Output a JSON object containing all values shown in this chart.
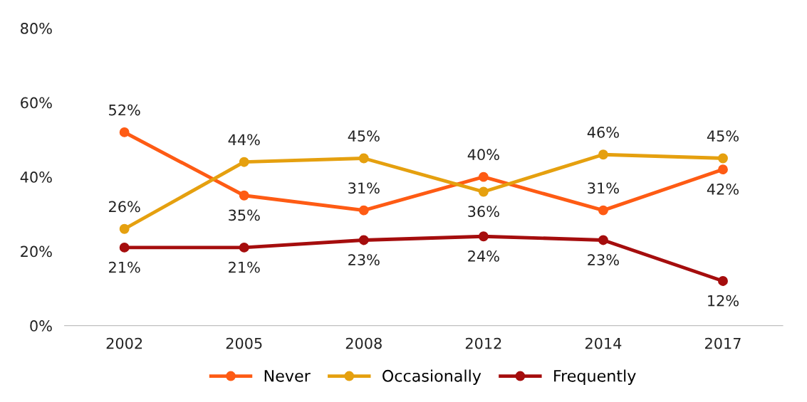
{
  "chart_data": {
    "type": "line",
    "categories": [
      "2002",
      "2005",
      "2008",
      "2012",
      "2014",
      "2017"
    ],
    "series": [
      {
        "name": "Never",
        "color": "#fe5b14",
        "values": [
          52,
          35,
          31,
          40,
          31,
          42
        ],
        "value_labels": [
          "52%",
          "35%",
          "31%",
          "40%",
          "31%",
          "42%"
        ]
      },
      {
        "name": "Occasionally",
        "color": "#e5a00f",
        "values": [
          26,
          44,
          45,
          36,
          46,
          45
        ],
        "value_labels": [
          "26%",
          "44%",
          "45%",
          "36%",
          "46%",
          "45%"
        ]
      },
      {
        "name": "Frequently",
        "color": "#a50d0d",
        "values": [
          21,
          21,
          23,
          24,
          23,
          12
        ],
        "value_labels": [
          "21%",
          "21%",
          "23%",
          "24%",
          "23%",
          "12%"
        ]
      }
    ],
    "ylim": [
      0,
      80
    ],
    "yticks": [
      {
        "value": 0,
        "label": "0%"
      },
      {
        "value": 20,
        "label": "20%"
      },
      {
        "value": 40,
        "label": "40%"
      },
      {
        "value": 60,
        "label": "60%"
      },
      {
        "value": 80,
        "label": "80%"
      }
    ],
    "grid": false,
    "legend": "bottom",
    "marker": "circle",
    "line_style": "solid"
  }
}
